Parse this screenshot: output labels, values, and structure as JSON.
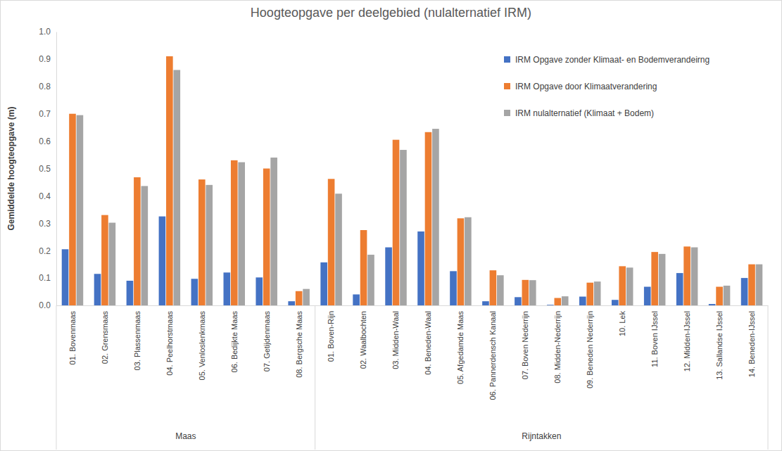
{
  "chart_data": {
    "type": "bar",
    "title": "Hoogteopgave per deelgebied (nulalternatief IRM)",
    "y_label": "Gemiddelde hoogteopgave (m)",
    "categories": [
      "01. Bovenmaas",
      "02. Grensmaas",
      "03. Plassenmaas",
      "04. Peelhorstmaas",
      "05. Venloslenkmaas",
      "06. Bedijkte Maas",
      "07. Getijdenmaas",
      "08. Bergsche Maas",
      "01. Boven-Rijn",
      "02. Waalbochten",
      "03. Midden-Waal",
      "04. Beneden-Waal",
      "05. Afgedamde Maas",
      "06. Pannerdensch Kanaal",
      "07. Boven Nederrijn",
      "08. Midden-Nederrijn",
      "09. Beneden Nederrijn",
      "10. Lek",
      "11. Boven IJssel",
      "12. Midden-IJssel",
      "13. Sallandse IJssel",
      "14. Beneden-IJssel"
    ],
    "category_groups": [
      "Maas",
      "Maas",
      "Maas",
      "Maas",
      "Maas",
      "Maas",
      "Maas",
      "Maas",
      "Rijntakken",
      "Rijntakken",
      "Rijntakken",
      "Rijntakken",
      "Rijntakken",
      "Rijntakken",
      "Rijntakken",
      "Rijntakken",
      "Rijntakken",
      "Rijntakken",
      "Rijntakken",
      "Rijntakken",
      "Rijntakken",
      "Rijntakken"
    ],
    "series": [
      {
        "name": "IRM Opgave zonder Klimaat- en Bodemverandeirng",
        "color": "#4472c4",
        "values": [
          0.205,
          0.115,
          0.09,
          0.325,
          0.097,
          0.12,
          0.102,
          0.015,
          0.157,
          0.04,
          0.212,
          0.27,
          0.125,
          0.015,
          0.03,
          0.002,
          0.032,
          0.02,
          0.068,
          0.118,
          0.005,
          0.1
        ]
      },
      {
        "name": "IRM Opgave door Klimaatverandering",
        "color": "#ed7d31",
        "values": [
          0.7,
          0.33,
          0.468,
          0.91,
          0.46,
          0.53,
          0.5,
          0.052,
          0.462,
          0.275,
          0.605,
          0.633,
          0.318,
          0.128,
          0.093,
          0.027,
          0.083,
          0.143,
          0.195,
          0.215,
          0.068,
          0.15
        ]
      },
      {
        "name": "IRM nulalternatief (Klimaat + Bodem)",
        "color": "#a5a5a5",
        "values": [
          0.695,
          0.302,
          0.436,
          0.86,
          0.44,
          0.523,
          0.54,
          0.06,
          0.408,
          0.185,
          0.568,
          0.645,
          0.322,
          0.11,
          0.092,
          0.033,
          0.087,
          0.138,
          0.188,
          0.212,
          0.072,
          0.15
        ]
      }
    ],
    "ylim": [
      0,
      1
    ],
    "yticks": [
      {
        "value": 0,
        "label": "0.0"
      },
      0.1,
      0.2,
      0.3,
      0.4,
      0.5,
      0.6,
      0.7,
      0.8,
      0.9,
      {
        "value": 1,
        "label": "1.0"
      }
    ],
    "grid": false,
    "legend": "top-right"
  }
}
